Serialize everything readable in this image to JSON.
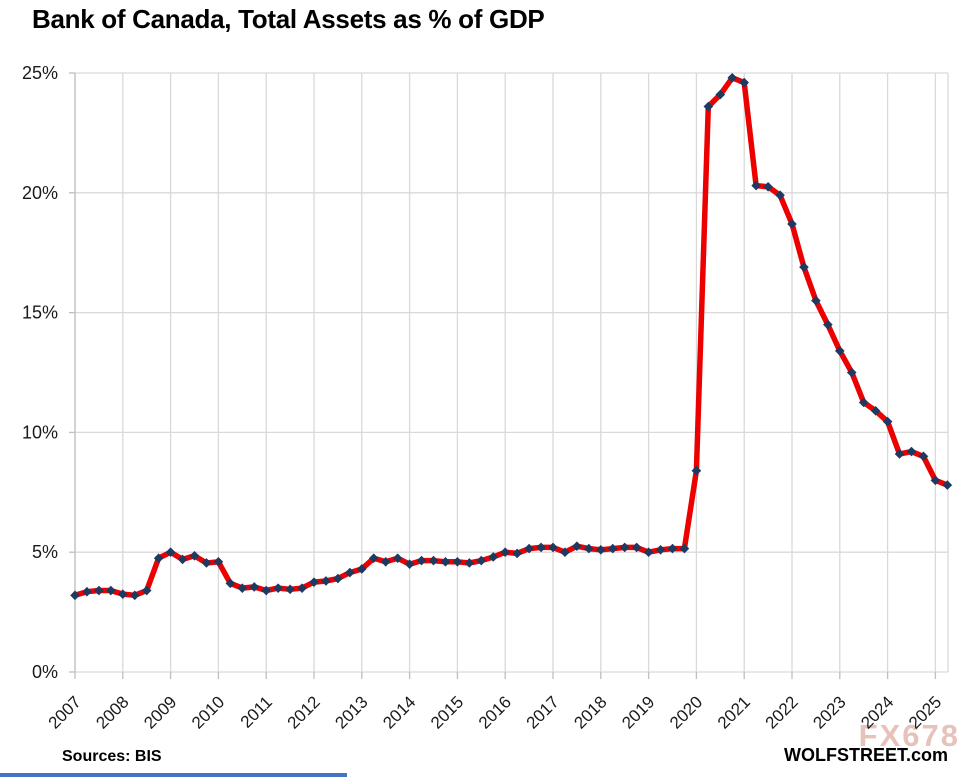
{
  "title": "Bank of Canada, Total Assets as % of GDP",
  "watermark": "FX678",
  "footer": {
    "sources": "Sources: BIS",
    "brand": "WOLFSTREET.com"
  },
  "colors": {
    "line": "#ec0000",
    "marker": "#1f3a60",
    "grid": "#d9d9d9",
    "axis": "#bfbfbf",
    "label_text": "#1a1a1a",
    "watermark": "#e2b3aa",
    "bottom_strip": "#4472c4"
  },
  "chart_data": {
    "type": "line",
    "title": "Bank of Canada, Total Assets as % of GDP",
    "source_note": "Sources: BIS",
    "frequency": "quarterly",
    "start_period": "2007-Q1",
    "end_period": "2025-Q2",
    "grid": true,
    "ylim": [
      0,
      25
    ],
    "y_tick_labels": [
      "0%",
      "5%",
      "10%",
      "15%",
      "20%",
      "25%"
    ],
    "x_year_labels": [
      "2007",
      "2008",
      "2009",
      "2010",
      "2011",
      "2012",
      "2013",
      "2014",
      "2015",
      "2016",
      "2017",
      "2018",
      "2019",
      "2020",
      "2021",
      "2022",
      "2023",
      "2024",
      "2025"
    ],
    "series": [
      {
        "name": "Bank of Canada total assets as % of GDP",
        "values": [
          3.2,
          3.35,
          3.4,
          3.4,
          3.25,
          3.2,
          3.4,
          4.75,
          5.0,
          4.7,
          4.85,
          4.55,
          4.6,
          3.7,
          3.5,
          3.55,
          3.4,
          3.5,
          3.45,
          3.5,
          3.75,
          3.8,
          3.9,
          4.15,
          4.3,
          4.75,
          4.6,
          4.75,
          4.5,
          4.65,
          4.65,
          4.6,
          4.6,
          4.55,
          4.65,
          4.8,
          5.0,
          4.95,
          5.15,
          5.2,
          5.2,
          5.0,
          5.25,
          5.15,
          5.1,
          5.15,
          5.2,
          5.2,
          5.0,
          5.1,
          5.15,
          5.15,
          8.4,
          23.6,
          24.1,
          24.8,
          24.6,
          20.3,
          20.25,
          19.9,
          18.7,
          16.9,
          15.5,
          14.5,
          13.4,
          12.5,
          11.25,
          10.9,
          10.45,
          9.1,
          9.2,
          9.0,
          8.0,
          7.8
        ]
      }
    ]
  }
}
